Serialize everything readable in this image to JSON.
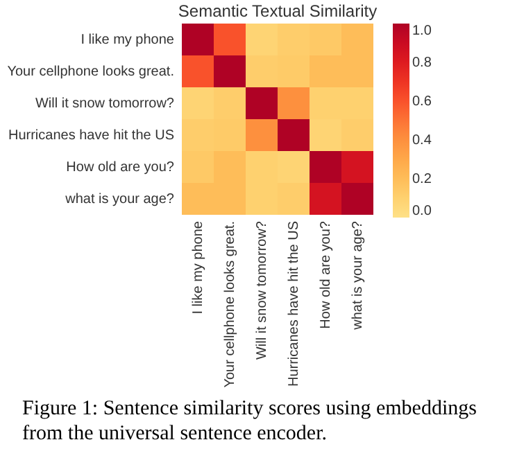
{
  "chart_data": {
    "type": "heatmap",
    "title": "Semantic Textual Similarity",
    "categories": [
      "I like my phone",
      "Your cellphone looks great.",
      "Will it snow tomorrow?",
      "Hurricanes have hit the US",
      "How old are you?",
      "what is your age?"
    ],
    "y_categories": [
      "I like my phone",
      "Your cellphone looks great.",
      "Will it snow tomorrow?",
      "Hurricanes have hit the US",
      "How old are you?",
      "what is your age?"
    ],
    "cells": [
      [
        1.0,
        0.6,
        0.08,
        0.12,
        0.14,
        0.2
      ],
      [
        0.6,
        1.0,
        0.12,
        0.13,
        0.2,
        0.2
      ],
      [
        0.08,
        0.12,
        1.0,
        0.4,
        0.1,
        0.1
      ],
      [
        0.12,
        0.13,
        0.4,
        1.0,
        0.08,
        0.12
      ],
      [
        0.14,
        0.2,
        0.1,
        0.08,
        1.0,
        0.85
      ],
      [
        0.2,
        0.2,
        0.1,
        0.12,
        0.85,
        1.0
      ]
    ],
    "clim": [
      0.0,
      1.0
    ],
    "cticks": [
      {
        "value": 0,
        "label": "0.0"
      },
      {
        "value": 0.2,
        "label": "0.2"
      },
      {
        "value": 0.4,
        "label": "0.4"
      },
      {
        "value": 0.6,
        "label": "0.6"
      },
      {
        "value": 0.8,
        "label": "0.8"
      },
      {
        "value": 1,
        "label": "1.0"
      }
    ],
    "annotations": [
      "Figure 1: Sentence similarity scores using embeddings from the universal sentence encoder."
    ]
  }
}
